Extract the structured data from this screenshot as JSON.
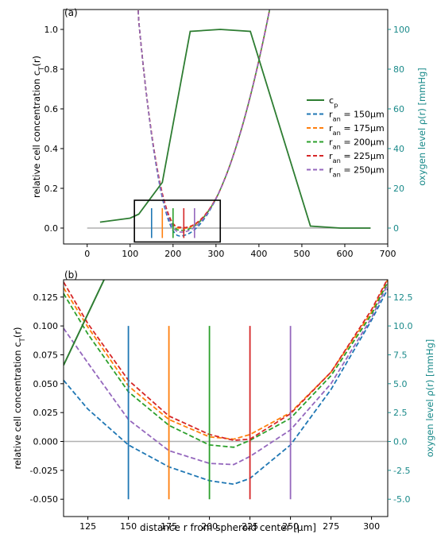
{
  "figure": {
    "xlabel": "distance r from spheroid center [μm]"
  },
  "chart_data": [
    {
      "panel": "(a)",
      "type": "line",
      "ylabel_left": "relative cell concentration c_T(r)",
      "ylabel_right": "oxygen level ρ(r) [mmHg]",
      "xlim": [
        -55,
        700
      ],
      "ylim_left": [
        -0.08,
        1.1
      ],
      "ylim_right": [
        -8,
        110
      ],
      "x_ticks": [
        "0",
        "100",
        "200",
        "300",
        "400",
        "500",
        "600",
        "700"
      ],
      "y_ticks_left": [
        "0.0",
        "0.2",
        "0.4",
        "0.6",
        "0.8",
        "1.0"
      ],
      "y_ticks_right": [
        "0",
        "20",
        "40",
        "60",
        "80",
        "100"
      ],
      "legend_position": "right",
      "legend": [
        {
          "label": "c_p",
          "color": "#2e7d32",
          "style": "solid"
        },
        {
          "label": "r_an = 150μm",
          "color": "#1f77b4",
          "style": "dashed"
        },
        {
          "label": "r_an = 175μm",
          "color": "#ff7f0e",
          "style": "dashed"
        },
        {
          "label": "r_an = 200μm",
          "color": "#2ca02c",
          "style": "dashed"
        },
        {
          "label": "r_an = 225μm",
          "color": "#d62728",
          "style": "dashed"
        },
        {
          "label": "r_an = 250μm",
          "color": "#9467bd",
          "style": "dashed"
        }
      ],
      "zoom_box": {
        "x": [
          110,
          310
        ],
        "y": [
          -0.07,
          0.14
        ]
      },
      "cp_series": {
        "x": [
          30,
          100,
          120,
          175,
          240,
          310,
          380,
          520,
          590,
          660
        ],
        "y": [
          0.03,
          0.05,
          0.07,
          0.23,
          0.99,
          1.0,
          0.99,
          0.01,
          0.0,
          0.0
        ]
      },
      "marker_x": [
        150,
        175,
        200,
        225,
        250
      ],
      "baseline_y": 0.0,
      "baseline_x": [
        0,
        660
      ]
    },
    {
      "panel": "(b)",
      "type": "line",
      "ylabel_left": "relative cell concentration c_T(r)",
      "ylabel_right": "oxygen level ρ(r) [mmHg]",
      "xlim": [
        110,
        310
      ],
      "ylim_left": [
        -0.065,
        0.14
      ],
      "ylim_right": [
        -6.5,
        14
      ],
      "x_ticks": [
        "125",
        "150",
        "175",
        "200",
        "225",
        "250",
        "275",
        "300"
      ],
      "y_ticks_left": [
        "0.125",
        "0.100",
        "0.075",
        "0.050",
        "0.025",
        "0.000",
        "-0.025",
        "-0.050"
      ],
      "y_ticks_right": [
        "12.5",
        "10.0",
        "7.5",
        "5.0",
        "2.5",
        "0.0",
        "-2.5",
        "-5.0"
      ],
      "series": [
        {
          "name": "r_an = 150μm",
          "color": "#1f77b4",
          "x": [
            110,
            125,
            150,
            175,
            200,
            215,
            225,
            250,
            275,
            300,
            310
          ],
          "y": [
            0.053,
            0.028,
            -0.003,
            -0.022,
            -0.034,
            -0.037,
            -0.032,
            -0.003,
            0.045,
            0.105,
            0.132
          ]
        },
        {
          "name": "r_an = 175μm",
          "color": "#ff7f0e",
          "x": [
            110,
            125,
            150,
            175,
            200,
            215,
            225,
            250,
            275,
            300,
            310
          ],
          "y": [
            0.133,
            0.099,
            0.048,
            0.019,
            0.004,
            0.002,
            0.006,
            0.025,
            0.06,
            0.112,
            0.14
          ]
        },
        {
          "name": "r_an = 200μm",
          "color": "#2ca02c",
          "x": [
            110,
            125,
            150,
            175,
            200,
            215,
            225,
            250,
            275,
            300,
            310
          ],
          "y": [
            0.128,
            0.093,
            0.043,
            0.014,
            -0.003,
            -0.005,
            0.001,
            0.02,
            0.057,
            0.11,
            0.138
          ]
        },
        {
          "name": "r_an = 225μm",
          "color": "#d62728",
          "x": [
            110,
            125,
            150,
            175,
            200,
            215,
            225,
            250,
            275,
            300,
            310
          ],
          "y": [
            0.138,
            0.102,
            0.053,
            0.022,
            0.006,
            0.001,
            0.002,
            0.024,
            0.06,
            0.114,
            0.141
          ]
        },
        {
          "name": "r_an = 250μm",
          "color": "#9467bd",
          "x": [
            110,
            125,
            150,
            175,
            200,
            215,
            225,
            250,
            275,
            300,
            310
          ],
          "y": [
            0.098,
            0.068,
            0.019,
            -0.008,
            -0.019,
            -0.02,
            -0.013,
            0.01,
            0.05,
            0.107,
            0.136
          ]
        }
      ],
      "cp_series": {
        "x": [
          110,
          135
        ],
        "y": [
          0.066,
          0.14
        ]
      },
      "marker_x": [
        150,
        175,
        200,
        225,
        250
      ],
      "marker_colors": [
        "#1f77b4",
        "#ff7f0e",
        "#2ca02c",
        "#d62728",
        "#9467bd"
      ],
      "marker_y": [
        -0.05,
        0.1
      ],
      "baseline_y": 0.0
    }
  ]
}
